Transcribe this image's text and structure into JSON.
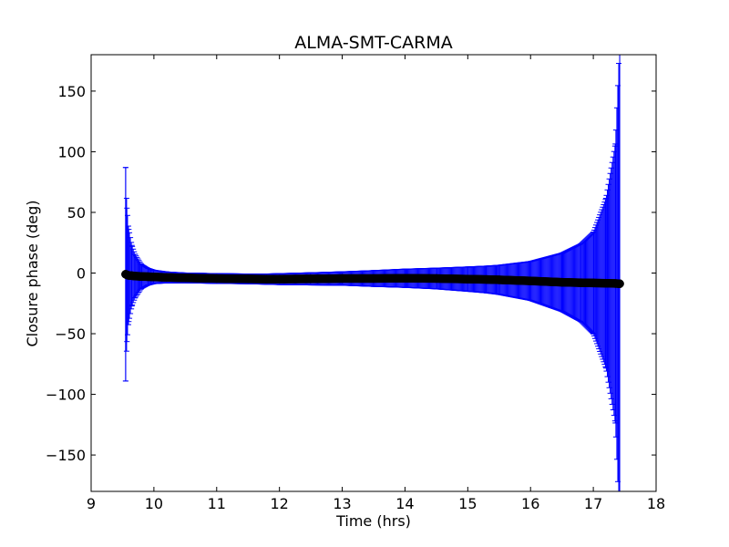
{
  "chart_data": {
    "type": "scatter",
    "title": "ALMA-SMT-CARMA",
    "xlabel": "Time (hrs)",
    "ylabel": "Closure phase (deg)",
    "xlim": [
      9,
      18
    ],
    "ylim": [
      -180,
      180
    ],
    "xticks": [
      9,
      10,
      11,
      12,
      13,
      14,
      15,
      16,
      17,
      18
    ],
    "yticks": [
      -150,
      -100,
      -50,
      0,
      50,
      100,
      150
    ],
    "xtick_labels": [
      "9",
      "10",
      "11",
      "12",
      "13",
      "14",
      "15",
      "16",
      "17",
      "18"
    ],
    "ytick_labels": [
      "−150",
      "−100",
      "−50",
      "0",
      "50",
      "100",
      "150"
    ],
    "grid": false,
    "colors": {
      "errorbar": "#0000ff",
      "marker": "#000000"
    },
    "series": [
      {
        "x": [
          9.55,
          9.57,
          9.6,
          9.65,
          9.7,
          9.8,
          9.9,
          10.0,
          10.2,
          10.5,
          10.8,
          11.0,
          11.5,
          11.8,
          12.0,
          12.5,
          13.0,
          13.5,
          14.0,
          14.5,
          15.0,
          15.3,
          15.5,
          16.0,
          16.5,
          16.8,
          17.0,
          17.2,
          17.35,
          17.42
        ],
        "y": [
          -1.0,
          -1.5,
          -2.0,
          -2.2,
          -2.5,
          -2.8,
          -3.0,
          -3.2,
          -3.6,
          -4.0,
          -4.3,
          -4.5,
          -4.8,
          -5.0,
          -5.0,
          -4.8,
          -4.5,
          -4.5,
          -4.3,
          -4.5,
          -5.0,
          -5.3,
          -5.6,
          -6.5,
          -7.6,
          -8.0,
          -8.2,
          -8.4,
          -8.6,
          -8.8
        ],
        "yerr": [
          88,
          55,
          38,
          25,
          18,
          10,
          7,
          5.5,
          4.5,
          4,
          4,
          4,
          4,
          4.2,
          4.5,
          5,
          5.5,
          6.5,
          7.5,
          8.5,
          10,
          11,
          12,
          16,
          24,
          32,
          42,
          70,
          115,
          200
        ]
      }
    ]
  }
}
